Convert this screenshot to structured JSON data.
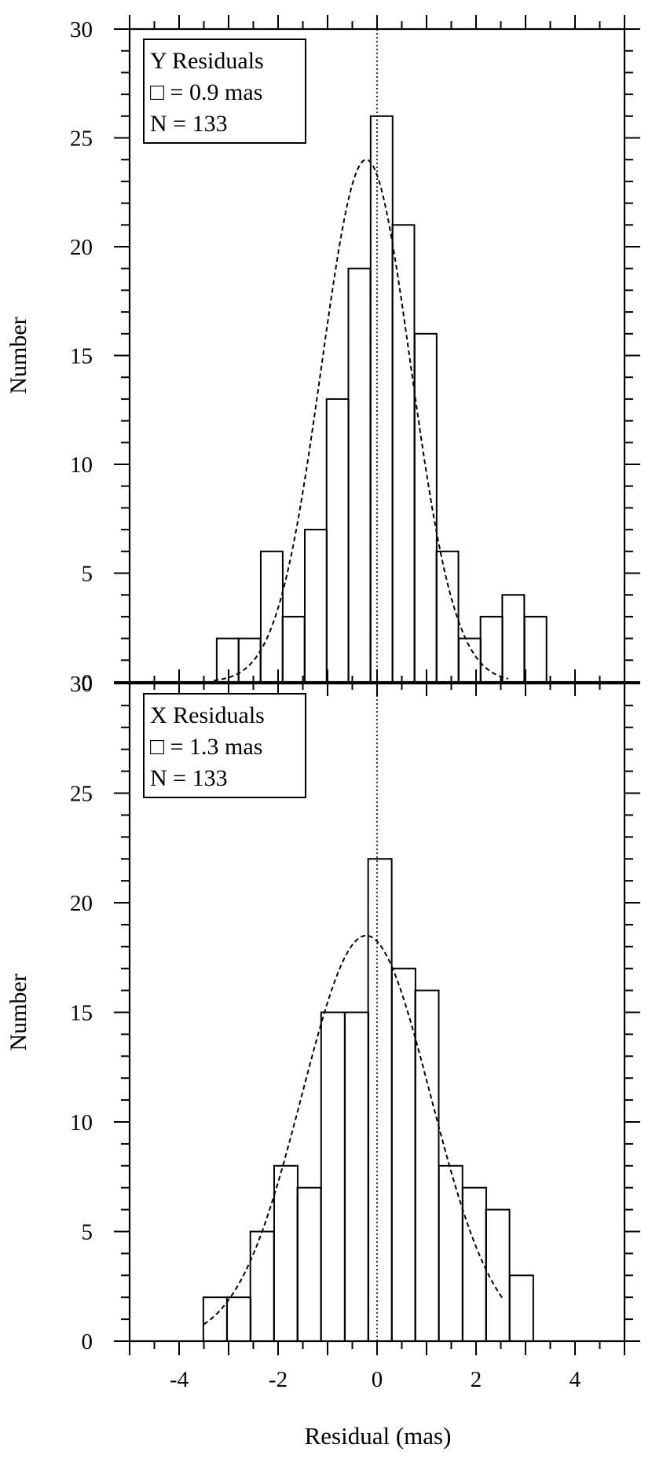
{
  "chart_data": [
    {
      "type": "bar",
      "panel": "Y",
      "legend": [
        "Y Residuals",
        "□ = 0.9 mas",
        "N = 133"
      ],
      "ylabel": "Number",
      "xlabel": "",
      "xlim": [
        -5,
        5
      ],
      "ylim": [
        0,
        30
      ],
      "yticks": [
        "0",
        "5",
        "10",
        "15",
        "20",
        "25",
        "30"
      ],
      "bin_width": 0.444,
      "bins": [
        {
          "start": -3.24,
          "value": 2
        },
        {
          "start": -2.8,
          "value": 2
        },
        {
          "start": -2.35,
          "value": 6
        },
        {
          "start": -1.91,
          "value": 3
        },
        {
          "start": -1.46,
          "value": 7
        },
        {
          "start": -1.02,
          "value": 13
        },
        {
          "start": -0.58,
          "value": 19
        },
        {
          "start": -0.13,
          "value": 26
        },
        {
          "start": 0.31,
          "value": 21
        },
        {
          "start": 0.76,
          "value": 16
        },
        {
          "start": 1.2,
          "value": 6
        },
        {
          "start": 1.65,
          "value": 2
        },
        {
          "start": 2.09,
          "value": 3
        },
        {
          "start": 2.53,
          "value": 4
        },
        {
          "start": 2.98,
          "value": 3
        }
      ],
      "fit": {
        "type": "gaussian",
        "amplitude": 24,
        "mean": -0.22,
        "sigma": 0.9,
        "x_range": [
          -3.3,
          2.65
        ],
        "style": "dashed"
      },
      "reference_line": {
        "x": 0,
        "style": "dotted"
      }
    },
    {
      "type": "bar",
      "panel": "X",
      "legend": [
        "X Residuals",
        "□ = 1.3 mas",
        "N = 133"
      ],
      "ylabel": "Number",
      "xlabel": "Residual (mas)",
      "xlim": [
        -5,
        5
      ],
      "ylim": [
        0,
        30
      ],
      "xticks": [
        "-4",
        "-2",
        "0",
        "2",
        "4"
      ],
      "yticks": [
        "0",
        "5",
        "10",
        "15",
        "20",
        "25",
        "30"
      ],
      "bin_width": 0.476,
      "bins": [
        {
          "start": -3.51,
          "value": 2
        },
        {
          "start": -3.03,
          "value": 2
        },
        {
          "start": -2.56,
          "value": 5
        },
        {
          "start": -2.08,
          "value": 8
        },
        {
          "start": -1.61,
          "value": 7
        },
        {
          "start": -1.13,
          "value": 15
        },
        {
          "start": -0.65,
          "value": 15
        },
        {
          "start": -0.18,
          "value": 22
        },
        {
          "start": 0.3,
          "value": 17
        },
        {
          "start": 0.77,
          "value": 16
        },
        {
          "start": 1.25,
          "value": 8
        },
        {
          "start": 1.73,
          "value": 7
        },
        {
          "start": 2.2,
          "value": 6
        },
        {
          "start": 2.68,
          "value": 3
        }
      ],
      "fit": {
        "type": "gaussian",
        "amplitude": 18.5,
        "mean": -0.22,
        "sigma": 1.3,
        "x_range": [
          -3.5,
          2.55
        ],
        "style": "dashed"
      },
      "reference_line": {
        "x": 0,
        "style": "dotted"
      }
    }
  ]
}
